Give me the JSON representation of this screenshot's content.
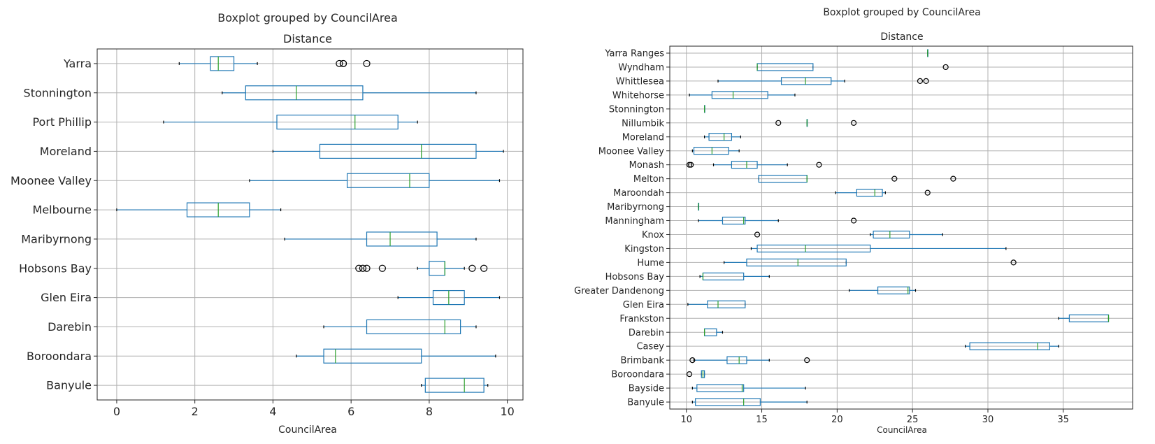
{
  "chart_data": [
    {
      "type": "boxplot",
      "orientation": "horizontal",
      "suptitle": "Boxplot grouped by CouncilArea",
      "title": "Distance",
      "xlabel": "CouncilArea",
      "xlim": [
        -0.5,
        10.4
      ],
      "xticks": [
        0,
        2,
        4,
        6,
        8,
        10
      ],
      "grid": true,
      "colors": {
        "box": "#1f77b4",
        "median": "#2ca02c",
        "grid": "#b0b0b0",
        "axis": "#262626"
      },
      "categories": [
        "Yarra",
        "Stonnington",
        "Port Phillip",
        "Moreland",
        "Moonee Valley",
        "Melbourne",
        "Maribyrnong",
        "Hobsons Bay",
        "Glen Eira",
        "Darebin",
        "Boroondara",
        "Banyule"
      ],
      "boxes": [
        {
          "label": "Yarra",
          "whislo": 1.6,
          "q1": 2.4,
          "med": 2.6,
          "q3": 3.0,
          "whishi": 3.6,
          "fliers": [
            5.7,
            5.8,
            5.8,
            6.4
          ]
        },
        {
          "label": "Stonnington",
          "whislo": 2.7,
          "q1": 3.3,
          "med": 4.6,
          "q3": 6.3,
          "whishi": 9.2,
          "fliers": []
        },
        {
          "label": "Port Phillip",
          "whislo": 1.2,
          "q1": 4.1,
          "med": 6.1,
          "q3": 7.2,
          "whishi": 7.7,
          "fliers": []
        },
        {
          "label": "Moreland",
          "whislo": 4.0,
          "q1": 5.2,
          "med": 7.8,
          "q3": 9.2,
          "whishi": 9.9,
          "fliers": []
        },
        {
          "label": "Moonee Valley",
          "whislo": 3.4,
          "q1": 5.9,
          "med": 7.5,
          "q3": 8.0,
          "whishi": 9.8,
          "fliers": []
        },
        {
          "label": "Melbourne",
          "whislo": 0.0,
          "q1": 1.8,
          "med": 2.6,
          "q3": 3.4,
          "whishi": 4.2,
          "fliers": []
        },
        {
          "label": "Maribyrnong",
          "whislo": 4.3,
          "q1": 6.4,
          "med": 7.0,
          "q3": 8.2,
          "whishi": 9.2,
          "fliers": []
        },
        {
          "label": "Hobsons Bay",
          "whislo": 7.7,
          "q1": 8.0,
          "med": 8.4,
          "q3": 8.4,
          "whishi": 8.9,
          "fliers": [
            6.2,
            6.3,
            6.4,
            6.8,
            9.1,
            9.4
          ]
        },
        {
          "label": "Glen Eira",
          "whislo": 7.2,
          "q1": 8.1,
          "med": 8.5,
          "q3": 8.9,
          "whishi": 9.8,
          "fliers": []
        },
        {
          "label": "Darebin",
          "whislo": 5.3,
          "q1": 6.4,
          "med": 8.4,
          "q3": 8.8,
          "whishi": 9.2,
          "fliers": []
        },
        {
          "label": "Boroondara",
          "whislo": 4.6,
          "q1": 5.3,
          "med": 5.6,
          "q3": 7.8,
          "whishi": 9.7,
          "fliers": []
        },
        {
          "label": "Banyule",
          "whislo": 7.8,
          "q1": 7.9,
          "med": 8.9,
          "q3": 9.4,
          "whishi": 9.5,
          "fliers": []
        }
      ]
    },
    {
      "type": "boxplot",
      "orientation": "horizontal",
      "suptitle": "Boxplot grouped by CouncilArea",
      "title": "Distance",
      "xlabel": "CouncilArea",
      "xlim": [
        8.9,
        39.6
      ],
      "xticks": [
        10,
        15,
        20,
        25,
        30,
        35
      ],
      "grid": true,
      "colors": {
        "box": "#1f77b4",
        "median": "#2ca02c",
        "grid": "#b0b0b0",
        "axis": "#262626"
      },
      "categories": [
        "Yarra Ranges",
        "Wyndham",
        "Whittlesea",
        "Whitehorse",
        "Stonnington",
        "Nillumbik",
        "Moreland",
        "Moonee Valley",
        "Monash",
        "Melton",
        "Maroondah",
        "Maribyrnong",
        "Manningham",
        "Knox",
        "Kingston",
        "Hume",
        "Hobsons Bay",
        "Greater Dandenong",
        "Glen Eira",
        "Frankston",
        "Darebin",
        "Casey",
        "Brimbank",
        "Boroondara",
        "Bayside",
        "Banyule"
      ],
      "boxes": [
        {
          "label": "Yarra Ranges",
          "whislo": 26.0,
          "q1": 26.0,
          "med": 26.0,
          "q3": 26.0,
          "whishi": 26.0,
          "fliers": []
        },
        {
          "label": "Wyndham",
          "whislo": 14.7,
          "q1": 14.7,
          "med": 14.7,
          "q3": 18.4,
          "whishi": 18.4,
          "fliers": [
            27.2
          ]
        },
        {
          "label": "Whittlesea",
          "whislo": 12.1,
          "q1": 16.3,
          "med": 17.9,
          "q3": 19.6,
          "whishi": 20.5,
          "fliers": [
            25.5,
            25.9
          ]
        },
        {
          "label": "Whitehorse",
          "whislo": 10.2,
          "q1": 11.7,
          "med": 13.1,
          "q3": 15.4,
          "whishi": 17.2,
          "fliers": []
        },
        {
          "label": "Stonnington",
          "whislo": 11.2,
          "q1": 11.2,
          "med": 11.2,
          "q3": 11.2,
          "whishi": 11.2,
          "fliers": []
        },
        {
          "label": "Nillumbik",
          "whislo": 18.0,
          "q1": 18.0,
          "med": 18.0,
          "q3": 18.0,
          "whishi": 18.0,
          "fliers": [
            16.1,
            21.1
          ]
        },
        {
          "label": "Moreland",
          "whislo": 11.2,
          "q1": 11.5,
          "med": 12.5,
          "q3": 13.0,
          "whishi": 13.6,
          "fliers": []
        },
        {
          "label": "Moonee Valley",
          "whislo": 10.4,
          "q1": 10.5,
          "med": 11.7,
          "q3": 12.8,
          "whishi": 13.5,
          "fliers": []
        },
        {
          "label": "Monash",
          "whislo": 11.8,
          "q1": 13.0,
          "med": 14.0,
          "q3": 14.7,
          "whishi": 16.7,
          "fliers": [
            10.2,
            10.3,
            18.8
          ]
        },
        {
          "label": "Melton",
          "whislo": 14.8,
          "q1": 14.8,
          "med": 18.0,
          "q3": 18.0,
          "whishi": 18.0,
          "fliers": [
            23.8,
            27.7
          ]
        },
        {
          "label": "Maroondah",
          "whislo": 19.9,
          "q1": 21.3,
          "med": 22.5,
          "q3": 23.0,
          "whishi": 23.2,
          "fliers": [
            26.0
          ]
        },
        {
          "label": "Maribyrnong",
          "whislo": 10.8,
          "q1": 10.8,
          "med": 10.8,
          "q3": 10.8,
          "whishi": 10.8,
          "fliers": []
        },
        {
          "label": "Manningham",
          "whislo": 10.8,
          "q1": 12.4,
          "med": 13.8,
          "q3": 13.9,
          "whishi": 16.1,
          "fliers": [
            21.1
          ]
        },
        {
          "label": "Knox",
          "whislo": 22.2,
          "q1": 22.4,
          "med": 23.5,
          "q3": 24.8,
          "whishi": 27.0,
          "fliers": [
            14.7
          ]
        },
        {
          "label": "Kingston",
          "whislo": 14.3,
          "q1": 14.7,
          "med": 17.9,
          "q3": 22.2,
          "whishi": 31.2,
          "fliers": []
        },
        {
          "label": "Hume",
          "whislo": 12.5,
          "q1": 14.0,
          "med": 17.4,
          "q3": 20.6,
          "whishi": 20.6,
          "fliers": [
            31.7
          ]
        },
        {
          "label": "Hobsons Bay",
          "whislo": 10.9,
          "q1": 11.1,
          "med": 11.1,
          "q3": 13.8,
          "whishi": 15.5,
          "fliers": []
        },
        {
          "label": "Greater Dandenong",
          "whislo": 20.8,
          "q1": 22.7,
          "med": 24.7,
          "q3": 24.8,
          "whishi": 25.2,
          "fliers": []
        },
        {
          "label": "Glen Eira",
          "whislo": 10.1,
          "q1": 11.4,
          "med": 12.1,
          "q3": 13.9,
          "whishi": 13.9,
          "fliers": []
        },
        {
          "label": "Frankston",
          "whislo": 34.7,
          "q1": 35.4,
          "med": 38.0,
          "q3": 38.0,
          "whishi": 38.0,
          "fliers": []
        },
        {
          "label": "Darebin",
          "whislo": 11.2,
          "q1": 11.2,
          "med": 11.2,
          "q3": 12.0,
          "whishi": 12.4,
          "fliers": []
        },
        {
          "label": "Casey",
          "whislo": 28.5,
          "q1": 28.8,
          "med": 33.3,
          "q3": 34.1,
          "whishi": 34.7,
          "fliers": []
        },
        {
          "label": "Brimbank",
          "whislo": 10.5,
          "q1": 12.7,
          "med": 13.5,
          "q3": 14.0,
          "whishi": 15.5,
          "fliers": [
            10.4,
            18.0
          ]
        },
        {
          "label": "Boroondara",
          "whislo": 11.0,
          "q1": 11.0,
          "med": 11.1,
          "q3": 11.2,
          "whishi": 11.2,
          "fliers": [
            10.2
          ]
        },
        {
          "label": "Bayside",
          "whislo": 10.4,
          "q1": 10.7,
          "med": 13.7,
          "q3": 13.8,
          "whishi": 17.9,
          "fliers": []
        },
        {
          "label": "Banyule",
          "whislo": 10.4,
          "q1": 10.6,
          "med": 13.8,
          "q3": 14.9,
          "whishi": 18.0,
          "fliers": []
        }
      ]
    }
  ]
}
